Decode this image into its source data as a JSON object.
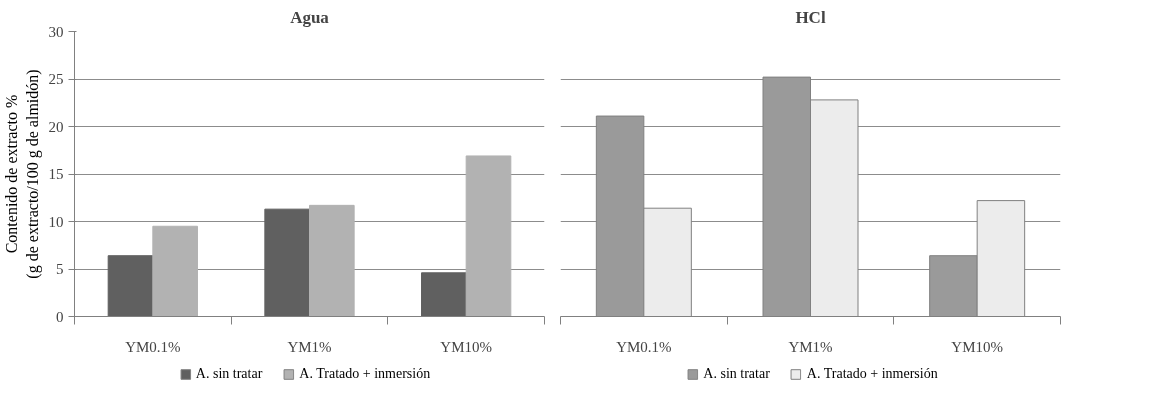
{
  "chart_data": [
    {
      "type": "bar",
      "title": "Agua",
      "ylabel": "Contenido de extracto %\n(g de extracto/100 g de almidón)",
      "categories": [
        "YM0.1%",
        "YM1%",
        "YM10%"
      ],
      "series": [
        {
          "name": "A. sin tratar",
          "color": "#606060",
          "values": [
            6.4,
            11.3,
            4.6
          ]
        },
        {
          "name": "A. Tratado + inmersión",
          "color": "#b2b2b2",
          "values": [
            9.5,
            11.7,
            16.9
          ]
        }
      ],
      "ylim": [
        0,
        30
      ],
      "yticks": [
        0,
        5,
        10,
        15,
        20,
        25,
        30
      ],
      "grid": "y",
      "legend": "bottom"
    },
    {
      "type": "bar",
      "title": "HCl",
      "categories": [
        "YM0.1%",
        "YM1%",
        "YM10%"
      ],
      "series": [
        {
          "name": "A. sin tratar",
          "color": "#9a9a9a",
          "values": [
            21.1,
            25.2,
            6.4
          ]
        },
        {
          "name": "A. Tratado + inmersión",
          "color": "#ececec",
          "values": [
            11.4,
            22.8,
            12.2
          ]
        }
      ],
      "ylim": [
        0,
        30
      ],
      "yticks": [
        0,
        5,
        10,
        15,
        20,
        25,
        30
      ],
      "grid": "y",
      "legend": "bottom",
      "tick_labels": "x"
    }
  ]
}
